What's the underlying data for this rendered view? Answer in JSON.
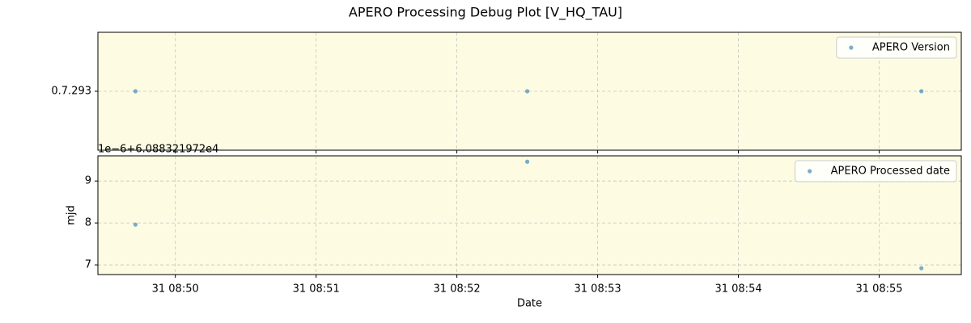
{
  "title": "APERO Processing Debug Plot [V_HQ_TAU]",
  "chart_data": [
    {
      "type": "scatter",
      "x": [
        "31 08:49:43",
        "31 08:52:30",
        "31 08:55:18"
      ],
      "series": [
        {
          "name": "APERO Version",
          "color": "#1f77b4",
          "values": [
            "0.7.293",
            "0.7.293",
            "0.7.293"
          ]
        }
      ],
      "yticks": [
        "0.7.293"
      ],
      "grid": true,
      "legend": "upper right",
      "background": "#fdfce3"
    },
    {
      "type": "scatter",
      "x": [
        "31 08:49:43",
        "31 08:52:30",
        "31 08:55:18"
      ],
      "series": [
        {
          "name": "APERO Processed date",
          "color": "#1f77b4",
          "values": [
            7.96,
            9.46,
            6.92
          ]
        }
      ],
      "xlabel": "Date",
      "ylabel": "mjd",
      "y_offset_label": "1e−6+6.088321972e4",
      "xlim": [
        "31 08:49:27",
        "31 08:55:35"
      ],
      "xticks": [
        "31 08:50",
        "31 08:51",
        "31 08:52",
        "31 08:53",
        "31 08:54",
        "31 08:55"
      ],
      "ylim": [
        6.77,
        9.6
      ],
      "yticks": [
        7,
        8,
        9
      ],
      "grid": true,
      "legend": "upper right",
      "background": "#fdfce3"
    }
  ]
}
